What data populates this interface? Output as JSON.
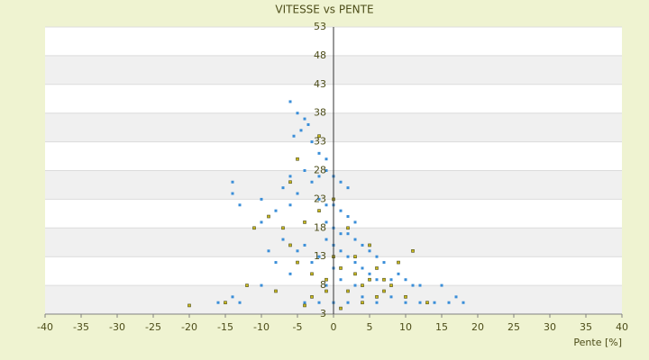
{
  "chart_data": {
    "type": "scatter",
    "title": "VITESSE vs PENTE",
    "x_label": "Pente [%]",
    "xlim": [
      -40,
      40
    ],
    "xticks": [
      -40,
      -35,
      -30,
      -25,
      -20,
      -15,
      -10,
      -5,
      0,
      5,
      10,
      15,
      20,
      25,
      30,
      35,
      40
    ],
    "ylim": [
      3,
      53
    ],
    "yticks": [
      3,
      8,
      13,
      18,
      23,
      28,
      33,
      38,
      43,
      48,
      53
    ],
    "grid": true,
    "series": [
      {
        "color": "#3a8ed8",
        "x": [
          -6,
          -5,
          -4,
          -4.5,
          -3,
          -2,
          -1,
          -5.5,
          -3.5,
          -14,
          -14,
          -13,
          -10,
          -10,
          -8,
          -7,
          -6,
          -6,
          -5,
          -4,
          -3,
          -2,
          -1,
          0,
          1,
          2,
          -2,
          -1,
          0,
          1,
          2,
          3,
          -1,
          0,
          1,
          2,
          3,
          4,
          5,
          6,
          7,
          -1,
          0,
          1,
          2,
          3,
          4,
          5,
          6,
          8,
          9,
          10,
          11,
          12,
          15,
          14,
          16,
          18,
          17,
          -2,
          -3,
          -4,
          -5,
          -6,
          -9,
          -10,
          -14,
          -13,
          -16,
          -4,
          -2,
          0,
          2,
          4,
          6,
          8,
          10,
          12,
          -7,
          -8,
          0,
          1,
          3,
          -1
        ],
        "values": [
          40,
          38,
          37,
          35,
          33,
          31,
          30,
          34,
          36,
          26,
          24,
          22,
          23,
          19,
          21,
          25,
          27,
          22,
          24,
          28,
          26,
          27,
          28,
          27,
          26,
          25,
          23,
          22,
          22,
          21,
          20,
          19,
          19,
          18,
          17,
          17,
          16,
          15,
          14,
          13,
          12,
          16,
          15,
          14,
          13,
          12,
          11,
          10,
          9,
          9,
          10,
          9,
          8,
          8,
          8,
          5,
          5,
          5,
          6,
          13,
          12,
          15,
          14,
          10,
          14,
          8,
          6,
          5,
          5,
          5,
          5,
          5,
          5,
          6,
          5,
          6,
          5,
          5,
          16,
          12,
          11,
          9,
          8,
          8
        ]
      },
      {
        "color": "#c9b81c",
        "x": [
          -20,
          -15,
          -12,
          -11,
          -9,
          -7,
          -6,
          -5,
          -4,
          -3,
          -2,
          -1,
          0,
          1,
          2,
          3,
          4,
          5,
          6,
          7,
          8,
          9,
          11,
          6,
          4,
          -3,
          -5,
          -6,
          -2,
          0,
          2,
          3,
          5,
          10,
          13,
          -8,
          -1,
          1,
          -4,
          7
        ],
        "values": [
          4.5,
          5,
          8,
          18,
          20,
          18,
          15,
          12,
          19,
          10,
          21,
          9,
          13,
          11,
          7,
          10,
          8,
          9,
          11,
          7,
          8,
          12,
          14,
          6,
          5,
          6,
          30,
          26,
          34,
          23,
          18,
          13,
          15,
          6,
          5,
          7,
          7,
          4,
          4.5,
          9
        ]
      }
    ]
  }
}
